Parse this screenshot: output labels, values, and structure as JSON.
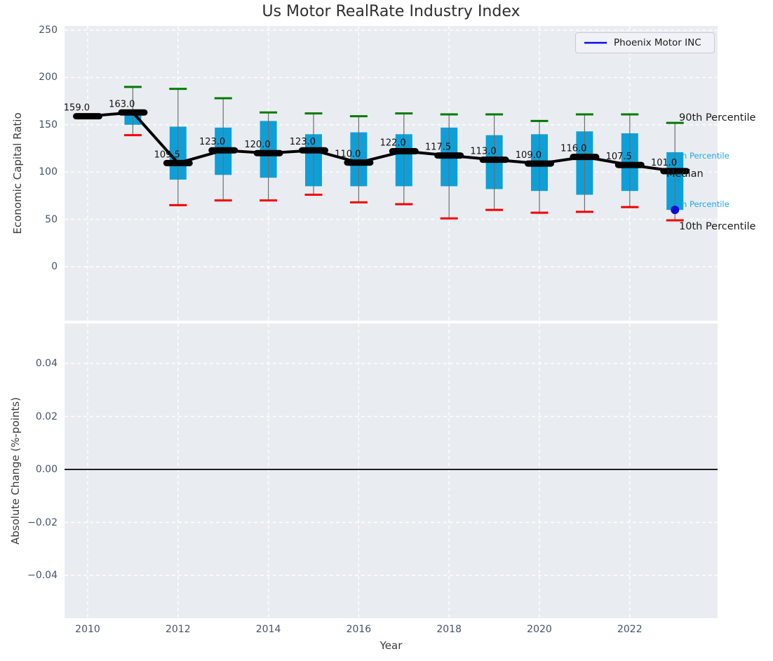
{
  "title": "Us Motor RealRate Industry Index",
  "xlabel": "Year",
  "legend": {
    "label": "Phoenix Motor INC",
    "line_color": "#0a0af0"
  },
  "top_plot": {
    "ylabel": "Economic Capital Ratio",
    "ytick_labels": [
      "250",
      "200",
      "150",
      "100",
      "50",
      "0"
    ],
    "ytick_values": [
      250,
      200,
      150,
      100,
      50,
      0
    ]
  },
  "bottom_plot": {
    "ylabel": "Absolute Change (%-points)",
    "ytick_labels": [
      "0.04",
      "0.02",
      "0.00",
      "−0.02",
      "−0.04"
    ],
    "ytick_values": [
      0.04,
      0.02,
      0,
      -0.02,
      -0.04
    ]
  },
  "xtick_labels": [
    "2010",
    "2012",
    "2014",
    "2016",
    "2018",
    "2020",
    "2022"
  ],
  "xtick_values": [
    2010,
    2012,
    2014,
    2016,
    2018,
    2020,
    2022
  ],
  "annotations": {
    "p90": {
      "text": "90th Percentile",
      "color": "#1a1a1a"
    },
    "median": {
      "text": "Median",
      "color": "#1a1a1a"
    },
    "p10": {
      "text": "10th Percentile",
      "color": "#1a1a1a"
    },
    "p75_clipped": {
      "text": "h Percentile",
      "color": "#1fa7e0"
    },
    "p25_clipped": {
      "text": "h Percentile",
      "color": "#1fa7e0"
    }
  },
  "colors": {
    "axes_background": "#e9edf1",
    "grid": "#ffffff",
    "box_fill": "#0f9fd8",
    "whisker": "#6e6e6e",
    "cap_high": "#007a00",
    "cap_low": "#f50000",
    "median_line": "#000000",
    "phoenix_dot": "#0a0ad4"
  },
  "chart_data": [
    {
      "type": "box",
      "title": "Us Motor RealRate Industry Index",
      "xlabel": "Year",
      "ylabel": "Economic Capital Ratio",
      "ylim": [
        -57,
        255
      ],
      "grid": true,
      "legend_entries": [
        "Phoenix Motor INC"
      ],
      "legend_position": "upper right",
      "categories": [
        2010,
        2011,
        2012,
        2013,
        2014,
        2015,
        2016,
        2017,
        2018,
        2019,
        2020,
        2021,
        2022,
        2023
      ],
      "boxes": [
        {
          "year": 2010,
          "p90": 161,
          "q3": 160,
          "median": 159.0,
          "q1": 157,
          "p10": null,
          "label": "159.0"
        },
        {
          "year": 2011,
          "p90": 190,
          "q3": 160,
          "median": 163.0,
          "q1": 150,
          "p10": 139,
          "label": "163.0"
        },
        {
          "year": 2012,
          "p90": 188,
          "q3": 148,
          "median": 109.5,
          "q1": 92,
          "p10": 65,
          "label": "109.5"
        },
        {
          "year": 2013,
          "p90": 178,
          "q3": 147,
          "median": 123.0,
          "q1": 97,
          "p10": 70,
          "label": "123.0"
        },
        {
          "year": 2014,
          "p90": 163,
          "q3": 154,
          "median": 120.0,
          "q1": 94,
          "p10": 70,
          "label": "120.0"
        },
        {
          "year": 2015,
          "p90": 162,
          "q3": 140,
          "median": 123.0,
          "q1": 85,
          "p10": 76,
          "label": "123.0"
        },
        {
          "year": 2016,
          "p90": 159,
          "q3": 142,
          "median": 110.0,
          "q1": 85,
          "p10": 68,
          "label": "110.0"
        },
        {
          "year": 2017,
          "p90": 162,
          "q3": 140,
          "median": 122.0,
          "q1": 85,
          "p10": 66,
          "label": "122.0"
        },
        {
          "year": 2018,
          "p90": 161,
          "q3": 147,
          "median": 117.5,
          "q1": 85,
          "p10": 51,
          "label": "117.5"
        },
        {
          "year": 2019,
          "p90": 161,
          "q3": 139,
          "median": 113.0,
          "q1": 82,
          "p10": 60,
          "label": "113.0"
        },
        {
          "year": 2020,
          "p90": 154,
          "q3": 140,
          "median": 109.0,
          "q1": 80,
          "p10": 57,
          "label": "109.0"
        },
        {
          "year": 2021,
          "p90": 161,
          "q3": 143,
          "median": 116.0,
          "q1": 76,
          "p10": 58,
          "label": "116.0"
        },
        {
          "year": 2022,
          "p90": 161,
          "q3": 141,
          "median": 107.5,
          "q1": 80,
          "p10": 63,
          "label": "107.5"
        },
        {
          "year": 2023,
          "p90": 152,
          "q3": 121,
          "median": 101.0,
          "q1": 60,
          "p10": 49,
          "label": "101.0"
        }
      ],
      "median_series": {
        "name": "Median",
        "values": [
          159.0,
          163.0,
          109.5,
          123.0,
          120.0,
          123.0,
          110.0,
          122.0,
          117.5,
          113.0,
          109.0,
          116.0,
          107.5,
          101.0
        ]
      },
      "phoenix_point": {
        "series": "Phoenix Motor INC",
        "x": 2023,
        "y": 60
      }
    },
    {
      "type": "line",
      "ylabel": "Absolute Change (%-points)",
      "ylim": [
        -0.056,
        0.055
      ],
      "grid": true,
      "series": [],
      "zero_line": 0.0
    }
  ]
}
